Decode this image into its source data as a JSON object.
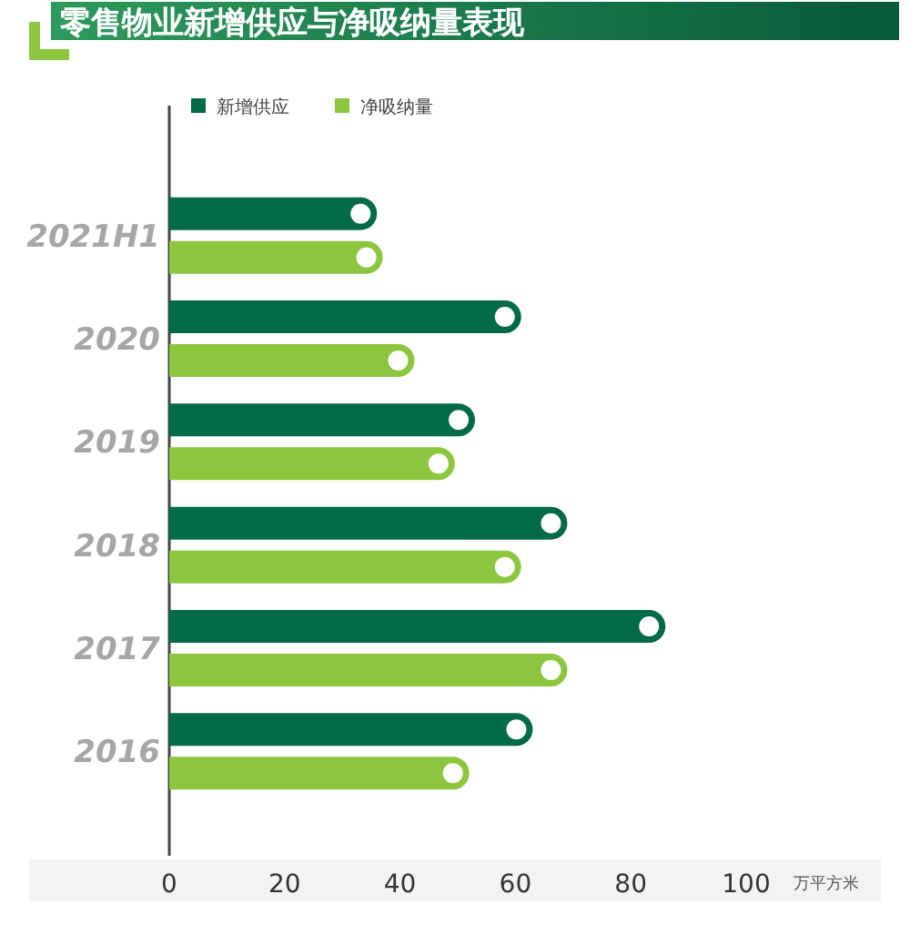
{
  "chart_data": {
    "type": "bar",
    "orientation": "horizontal",
    "title": "零售物业新增供应与净吸纳量表现",
    "xlabel": "万平方米",
    "categories": [
      "2021H1",
      "2020",
      "2019",
      "2018",
      "2017",
      "2016"
    ],
    "series": [
      {
        "name": "新增供应",
        "color": "#006b45",
        "values": [
          36,
          61,
          53,
          69,
          86,
          63
        ]
      },
      {
        "name": "净吸纳量",
        "color": "#8cc63f",
        "values": [
          37,
          42.5,
          49.5,
          61,
          69,
          52
        ]
      }
    ],
    "xlim": [
      0,
      100
    ],
    "xticks": [
      0,
      20,
      40,
      60,
      80,
      100
    ],
    "legend": "top left"
  }
}
